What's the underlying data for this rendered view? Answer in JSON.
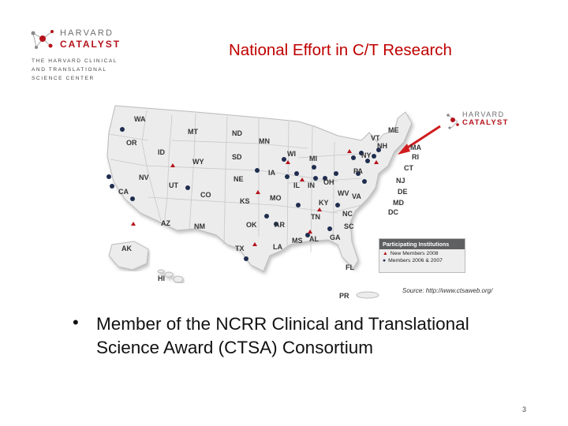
{
  "logo": {
    "word1": "HARVARD",
    "word2": "CATALYST",
    "sub_lines": [
      "THE HARVARD CLINICAL",
      "AND TRANSLATIONAL",
      "SCIENCE CENTER"
    ],
    "accent_color": "#b5121b"
  },
  "title": "National Effort in C/T Research",
  "map": {
    "inset_logo": {
      "word1": "HARVARD",
      "word2": "CATALYST"
    },
    "states": [
      "WA",
      "OR",
      "CA",
      "ID",
      "NV",
      "MT",
      "WY",
      "UT",
      "AZ",
      "CO",
      "NM",
      "ND",
      "SD",
      "NE",
      "KS",
      "OK",
      "TX",
      "MN",
      "IA",
      "MO",
      "AR",
      "LA",
      "WI",
      "IL",
      "MI",
      "IN",
      "OH",
      "KY",
      "TN",
      "MS",
      "AL",
      "GA",
      "FL",
      "SC",
      "NC",
      "VA",
      "WV",
      "PA",
      "NY",
      "VT",
      "NH",
      "ME",
      "MA",
      "RI",
      "CT",
      "NJ",
      "DE",
      "MD",
      "DC",
      "AK",
      "HI",
      "PR"
    ],
    "legend": {
      "heading": "Participating Institutions",
      "items": [
        {
          "label": "New Members 2008",
          "symbol": "triangle"
        },
        {
          "label": "Members 2006 & 2007",
          "symbol": "circle"
        }
      ]
    },
    "colors": {
      "new_member": "#b5121b",
      "member": "#1f2d4f",
      "arrow": "#d01c1f",
      "land": "#ececec"
    }
  },
  "source": "Source: http://www.ctsaweb.org/",
  "bullet": "Member of the NCRR Clinical and Translational Science Award (CTSA) Consortium",
  "page_number": "3"
}
